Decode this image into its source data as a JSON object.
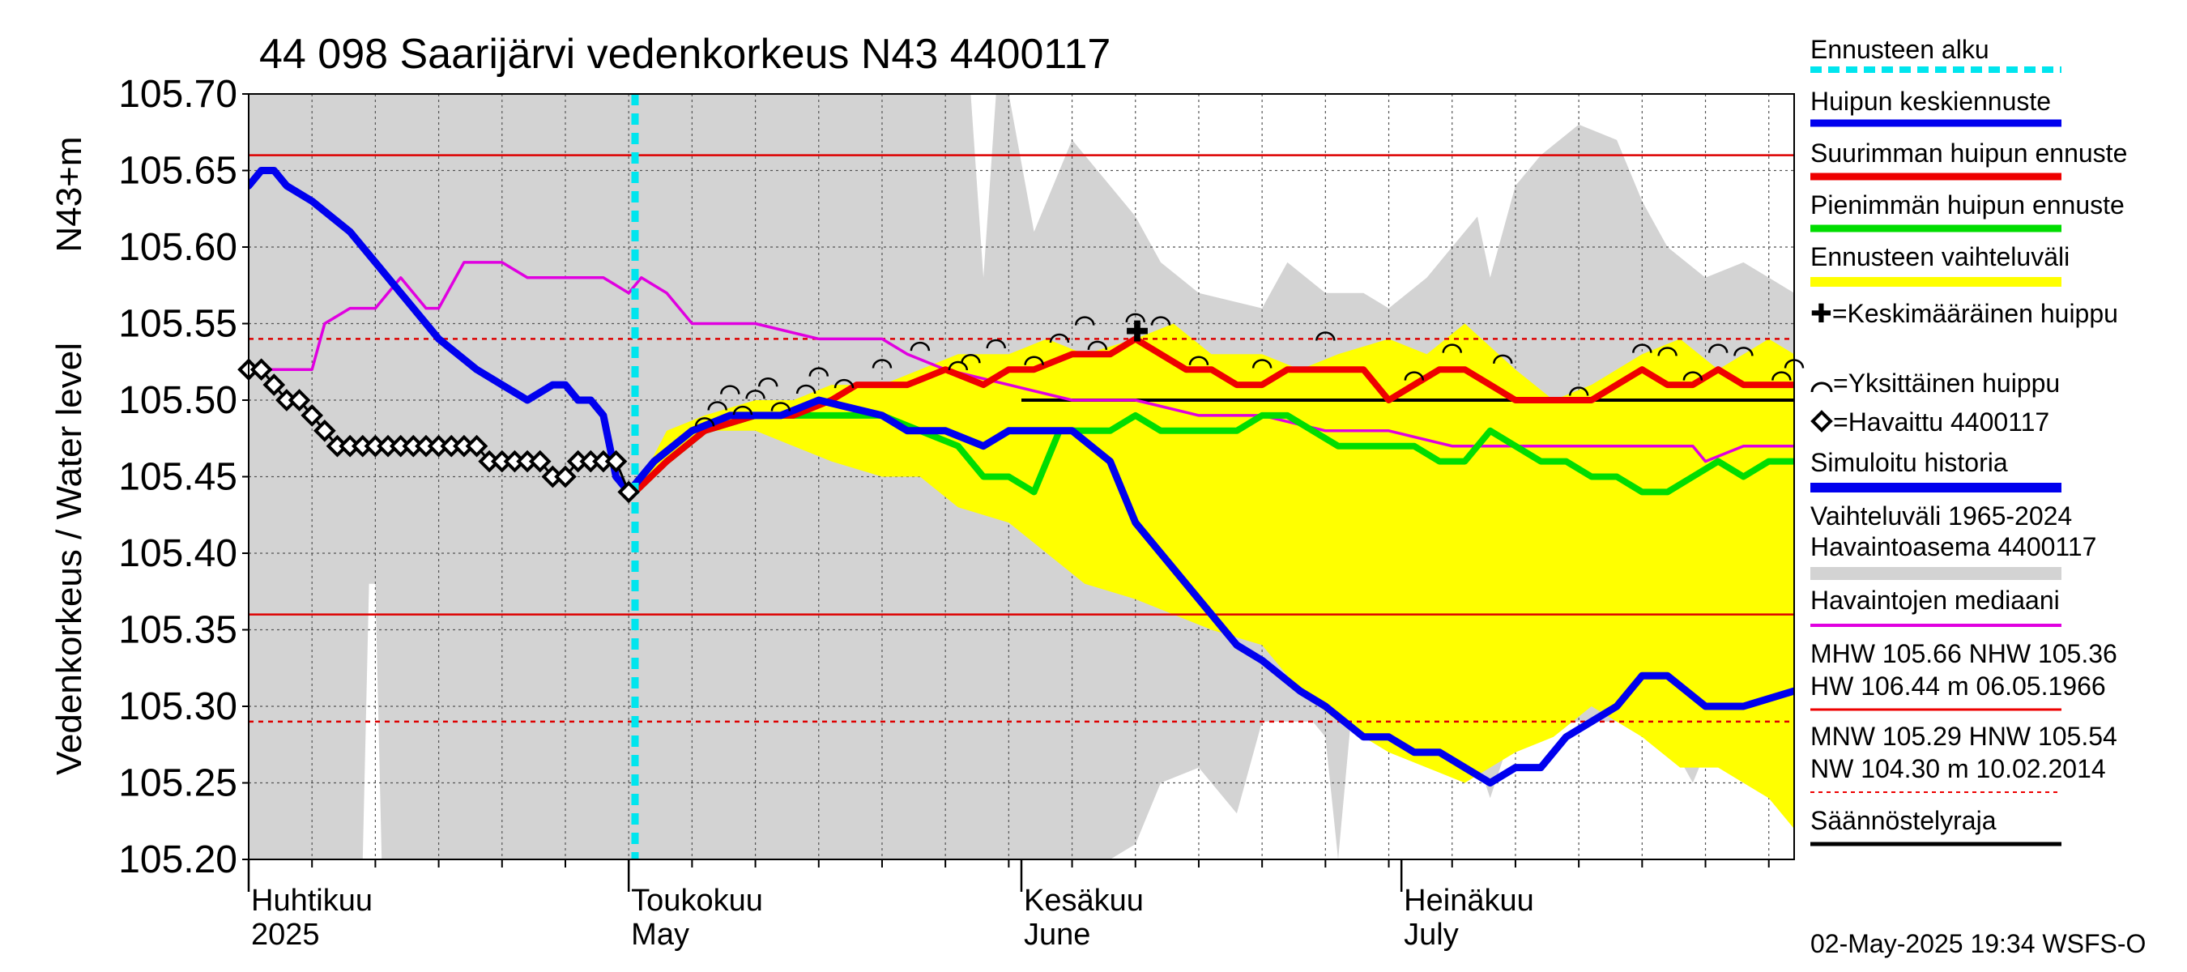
{
  "chart_data": {
    "type": "line",
    "title": "44 098 Saarijärvi vedenkorkeus N43 4400117",
    "ylabel": "Vedenkorkeus / Water level",
    "ylabel_unit": "N43+m",
    "ylim": [
      105.2,
      105.7
    ],
    "y_ticks": [
      "105.70",
      "105.65",
      "105.60",
      "105.55",
      "105.50",
      "105.45",
      "105.40",
      "105.35",
      "105.30",
      "105.25",
      "105.20"
    ],
    "xlim_days": [
      0,
      122
    ],
    "month_labels": [
      {
        "fi": "Huhtikuu",
        "en": "2025",
        "day": 0
      },
      {
        "fi": "Toukokuu",
        "en": "May",
        "day": 30
      },
      {
        "fi": "Kesäkuu",
        "en": "June",
        "day": 61
      },
      {
        "fi": "Heinäkuu",
        "en": "July",
        "day": 91
      }
    ],
    "forecast_start_day": 30.5,
    "reference_lines": {
      "MHW": 105.66,
      "NHW": 105.36,
      "MNW": 105.29,
      "HNW": 105.54,
      "regulation_limit": 105.5
    },
    "series": [
      {
        "name": "Vaihteluväli 1965-2024 (upper)",
        "x": [
          0,
          2,
          5,
          7,
          8,
          9,
          12,
          15,
          20,
          25,
          30,
          35,
          40,
          45,
          50,
          55,
          57,
          58,
          59,
          60,
          62,
          65,
          68,
          70,
          72,
          75,
          80,
          82,
          85,
          88,
          90,
          93,
          95,
          97,
          98,
          100,
          102,
          105,
          108,
          110,
          112,
          115,
          118,
          120,
          122
        ],
        "values": [
          105.7,
          105.7,
          105.7,
          105.7,
          105.7,
          105.7,
          105.7,
          105.7,
          105.7,
          105.7,
          105.7,
          105.7,
          105.7,
          105.7,
          105.7,
          105.7,
          105.7,
          105.58,
          105.7,
          105.7,
          105.61,
          105.67,
          105.64,
          105.62,
          105.59,
          105.57,
          105.56,
          105.59,
          105.57,
          105.57,
          105.56,
          105.58,
          105.6,
          105.62,
          105.58,
          105.64,
          105.66,
          105.68,
          105.67,
          105.63,
          105.6,
          105.58,
          105.59,
          105.58,
          105.57
        ]
      },
      {
        "name": "Vaihteluväli 1965-2024 (lower)",
        "x": [
          0,
          5,
          9,
          9.5,
          10,
          10.5,
          11,
          15,
          20,
          25,
          30,
          35,
          40,
          45,
          50,
          55,
          60,
          65,
          68,
          70,
          72,
          75,
          78,
          80,
          82,
          84,
          85,
          86,
          87,
          88,
          90,
          92,
          94,
          96,
          98,
          100,
          102,
          104,
          106,
          108,
          110,
          112,
          114,
          116,
          118,
          120,
          122
        ],
        "values": [
          105.2,
          105.2,
          105.2,
          105.38,
          105.38,
          105.2,
          105.2,
          105.2,
          105.2,
          105.2,
          105.2,
          105.2,
          105.2,
          105.2,
          105.2,
          105.2,
          105.2,
          105.2,
          105.2,
          105.21,
          105.25,
          105.26,
          105.23,
          105.29,
          105.29,
          105.29,
          105.28,
          105.2,
          105.29,
          105.29,
          105.29,
          105.29,
          105.29,
          105.29,
          105.24,
          105.29,
          105.29,
          105.29,
          105.29,
          105.29,
          105.29,
          105.28,
          105.25,
          105.29,
          105.29,
          105.29,
          105.29
        ]
      },
      {
        "name": "Ennusteen vaihteluväli (upper)",
        "x": [
          30.5,
          33,
          36,
          40,
          43,
          46,
          50,
          53,
          56,
          60,
          63,
          66,
          70,
          73,
          76,
          80,
          83,
          86,
          90,
          93,
          96,
          100,
          103,
          106,
          110,
          113,
          116,
          120,
          122
        ],
        "values": [
          105.44,
          105.48,
          105.49,
          105.5,
          105.5,
          105.51,
          105.51,
          105.52,
          105.53,
          105.53,
          105.54,
          105.53,
          105.54,
          105.55,
          105.53,
          105.53,
          105.52,
          105.53,
          105.54,
          105.53,
          105.55,
          105.52,
          105.5,
          105.51,
          105.53,
          105.54,
          105.52,
          105.54,
          105.53
        ]
      },
      {
        "name": "Ennusteen vaihteluväli (lower)",
        "x": [
          30.5,
          33,
          36,
          40,
          43,
          46,
          50,
          53,
          56,
          60,
          63,
          66,
          70,
          73,
          76,
          80,
          83,
          86,
          90,
          93,
          96,
          100,
          103,
          106,
          110,
          113,
          116,
          120,
          122
        ],
        "values": [
          105.44,
          105.46,
          105.48,
          105.48,
          105.47,
          105.46,
          105.45,
          105.45,
          105.43,
          105.42,
          105.4,
          105.38,
          105.37,
          105.36,
          105.35,
          105.34,
          105.31,
          105.29,
          105.27,
          105.26,
          105.25,
          105.27,
          105.28,
          105.3,
          105.28,
          105.26,
          105.26,
          105.24,
          105.22
        ]
      },
      {
        "name": "Havaintojen mediaani",
        "x": [
          0,
          3,
          5,
          6,
          8,
          10,
          12,
          14,
          15,
          17,
          18,
          20,
          22,
          24,
          26,
          28,
          30,
          31,
          33,
          35,
          37,
          40,
          45,
          50,
          52,
          55,
          60,
          65,
          70,
          75,
          80,
          85,
          90,
          95,
          100,
          105,
          110,
          114,
          115,
          118,
          122
        ],
        "values": [
          105.52,
          105.52,
          105.52,
          105.55,
          105.56,
          105.56,
          105.58,
          105.56,
          105.56,
          105.59,
          105.59,
          105.59,
          105.58,
          105.58,
          105.58,
          105.58,
          105.57,
          105.58,
          105.57,
          105.55,
          105.55,
          105.55,
          105.54,
          105.54,
          105.53,
          105.52,
          105.51,
          105.5,
          105.5,
          105.49,
          105.49,
          105.48,
          105.48,
          105.47,
          105.47,
          105.47,
          105.47,
          105.47,
          105.46,
          105.47,
          105.47
        ]
      },
      {
        "name": "Huipun keskiennuste",
        "x": [
          0,
          1,
          2,
          3,
          5,
          8,
          10,
          12,
          15,
          18,
          20,
          22,
          24,
          25,
          26,
          27,
          28,
          29,
          30,
          31,
          32,
          35,
          38,
          40,
          42,
          45,
          50,
          52,
          55,
          58,
          60,
          63,
          65,
          68,
          70,
          72,
          75,
          78,
          80,
          83,
          85,
          88,
          90,
          92,
          94,
          96,
          98,
          100,
          102,
          104,
          106,
          108,
          110,
          112,
          115,
          118,
          122
        ],
        "values": [
          105.64,
          105.65,
          105.65,
          105.64,
          105.63,
          105.61,
          105.59,
          105.57,
          105.54,
          105.52,
          105.51,
          105.5,
          105.51,
          105.51,
          105.5,
          105.5,
          105.49,
          105.45,
          105.44,
          105.45,
          105.46,
          105.48,
          105.49,
          105.49,
          105.49,
          105.5,
          105.49,
          105.48,
          105.48,
          105.47,
          105.48,
          105.48,
          105.48,
          105.46,
          105.42,
          105.4,
          105.37,
          105.34,
          105.33,
          105.31,
          105.3,
          105.28,
          105.28,
          105.27,
          105.27,
          105.26,
          105.25,
          105.26,
          105.26,
          105.28,
          105.29,
          105.3,
          105.32,
          105.32,
          105.3,
          105.3,
          105.31
        ]
      },
      {
        "name": "Suurimman huipun ennuste",
        "x": [
          30.5,
          33,
          36,
          40,
          43,
          46,
          48,
          50,
          52,
          55,
          58,
          60,
          62,
          65,
          68,
          70,
          72,
          74,
          76,
          78,
          80,
          82,
          84,
          86,
          88,
          90,
          92,
          94,
          96,
          98,
          100,
          102,
          104,
          106,
          108,
          110,
          112,
          114,
          116,
          118,
          120,
          122
        ],
        "values": [
          105.44,
          105.46,
          105.48,
          105.49,
          105.49,
          105.5,
          105.51,
          105.51,
          105.51,
          105.52,
          105.51,
          105.52,
          105.52,
          105.53,
          105.53,
          105.54,
          105.53,
          105.52,
          105.52,
          105.51,
          105.51,
          105.52,
          105.52,
          105.52,
          105.52,
          105.5,
          105.51,
          105.52,
          105.52,
          105.51,
          105.5,
          105.5,
          105.5,
          105.5,
          105.51,
          105.52,
          105.51,
          105.51,
          105.52,
          105.51,
          105.51,
          105.51
        ]
      },
      {
        "name": "Pienimmän huipun ennuste",
        "x": [
          30.5,
          33,
          36,
          40,
          43,
          46,
          50,
          53,
          56,
          58,
          60,
          62,
          64,
          66,
          68,
          70,
          72,
          74,
          76,
          78,
          80,
          82,
          84,
          86,
          88,
          90,
          92,
          94,
          96,
          98,
          100,
          102,
          104,
          106,
          108,
          110,
          112,
          114,
          116,
          118,
          120,
          122
        ],
        "values": [
          105.44,
          105.46,
          105.48,
          105.49,
          105.49,
          105.49,
          105.49,
          105.48,
          105.47,
          105.45,
          105.45,
          105.44,
          105.48,
          105.48,
          105.48,
          105.49,
          105.48,
          105.48,
          105.48,
          105.48,
          105.49,
          105.49,
          105.48,
          105.47,
          105.47,
          105.47,
          105.47,
          105.46,
          105.46,
          105.48,
          105.47,
          105.46,
          105.46,
          105.45,
          105.45,
          105.44,
          105.44,
          105.45,
          105.46,
          105.45,
          105.46,
          105.46
        ]
      },
      {
        "name": "Havaittu 4400117",
        "x": [
          0,
          1,
          2,
          3,
          4,
          5,
          6,
          7,
          8,
          9,
          10,
          11,
          12,
          13,
          14,
          15,
          16,
          17,
          18,
          19,
          20,
          21,
          22,
          23,
          24,
          25,
          26,
          27,
          28,
          29,
          30
        ],
        "values": [
          105.52,
          105.52,
          105.51,
          105.5,
          105.5,
          105.49,
          105.48,
          105.47,
          105.47,
          105.47,
          105.47,
          105.47,
          105.47,
          105.47,
          105.47,
          105.47,
          105.47,
          105.47,
          105.47,
          105.46,
          105.46,
          105.46,
          105.46,
          105.46,
          105.45,
          105.45,
          105.46,
          105.46,
          105.46,
          105.46,
          105.44
        ]
      }
    ],
    "peak_markers_days": [
      36,
      37,
      38,
      39,
      40,
      41,
      42,
      44,
      45,
      47,
      50,
      53,
      56,
      57,
      59,
      62,
      64,
      66,
      67,
      70,
      72,
      75,
      80,
      85,
      92,
      95,
      99,
      105,
      110,
      112,
      114,
      116,
      118,
      121,
      122
    ],
    "legend": [
      "Ennusteen alku",
      "Huipun keskiennuste",
      "Suurimman huipun ennuste",
      "Pienimmän huipun ennuste",
      "Ennusteen vaihteluväli",
      "✚=Keskimääräinen huippu",
      "=Yksittäinen huippu",
      "=Havaittu 4400117",
      "Simuloitu historia",
      "Vaihteluväli 1965-2024",
      "Havaintoasema 4400117",
      "Havaintojen mediaani",
      "MHW 105.66 NHW 105.36",
      "HW 106.44 m 06.05.1966",
      "MNW 105.29 HNW 105.54",
      "NW 104.30 m 10.02.2014",
      "Säännöstelyraja"
    ],
    "footer": "02-May-2025 19:34 WSFS-O"
  }
}
